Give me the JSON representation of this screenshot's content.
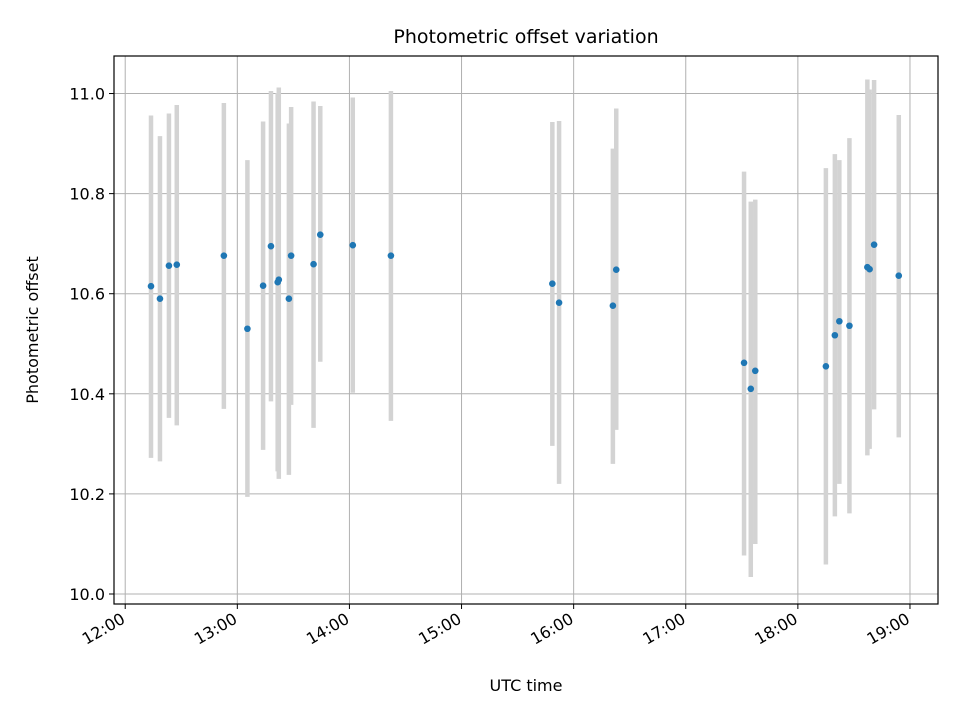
{
  "chart_data": {
    "type": "scatter",
    "title": "Photometric offset variation",
    "xlabel": "UTC time",
    "ylabel": "Photometric offset",
    "x_unit": "hours",
    "xlim": [
      11.9,
      19.25
    ],
    "ylim": [
      9.98,
      11.075
    ],
    "grid": true,
    "x_tick_values": [
      12,
      13,
      14,
      15,
      16,
      17,
      18,
      19
    ],
    "x_tick_labels": [
      "12:00",
      "13:00",
      "14:00",
      "15:00",
      "16:00",
      "17:00",
      "18:00",
      "19:00"
    ],
    "y_tick_values": [
      10.0,
      10.2,
      10.4,
      10.6,
      10.8,
      11.0
    ],
    "y_tick_labels": [
      "10.0",
      "10.2",
      "10.4",
      "10.6",
      "10.8",
      "11.0"
    ],
    "colors": {
      "points": "#1f77b4",
      "errorbars": "#d3d3d3",
      "grid": "#b0b0b0"
    },
    "points": [
      {
        "x": 12.23,
        "y": 10.615,
        "lo": 10.272,
        "hi": 10.956
      },
      {
        "x": 12.31,
        "y": 10.59,
        "lo": 10.265,
        "hi": 10.915
      },
      {
        "x": 12.39,
        "y": 10.656,
        "lo": 10.352,
        "hi": 10.96
      },
      {
        "x": 12.46,
        "y": 10.658,
        "lo": 10.337,
        "hi": 10.977
      },
      {
        "x": 12.88,
        "y": 10.676,
        "lo": 10.37,
        "hi": 10.981
      },
      {
        "x": 13.09,
        "y": 10.53,
        "lo": 10.194,
        "hi": 10.867
      },
      {
        "x": 13.23,
        "y": 10.616,
        "lo": 10.288,
        "hi": 10.944
      },
      {
        "x": 13.3,
        "y": 10.695,
        "lo": 10.385,
        "hi": 11.005
      },
      {
        "x": 13.36,
        "y": 10.623,
        "lo": 10.245,
        "hi": 11.001
      },
      {
        "x": 13.37,
        "y": 10.628,
        "lo": 10.23,
        "hi": 11.012
      },
      {
        "x": 13.46,
        "y": 10.59,
        "lo": 10.238,
        "hi": 10.94
      },
      {
        "x": 13.48,
        "y": 10.676,
        "lo": 10.378,
        "hi": 10.973
      },
      {
        "x": 13.68,
        "y": 10.659,
        "lo": 10.332,
        "hi": 10.984
      },
      {
        "x": 13.74,
        "y": 10.718,
        "lo": 10.464,
        "hi": 10.975
      },
      {
        "x": 14.03,
        "y": 10.697,
        "lo": 10.402,
        "hi": 10.992
      },
      {
        "x": 14.37,
        "y": 10.676,
        "lo": 10.346,
        "hi": 11.005
      },
      {
        "x": 15.81,
        "y": 10.62,
        "lo": 10.296,
        "hi": 10.943
      },
      {
        "x": 15.87,
        "y": 10.582,
        "lo": 10.22,
        "hi": 10.945
      },
      {
        "x": 16.35,
        "y": 10.576,
        "lo": 10.26,
        "hi": 10.89
      },
      {
        "x": 16.38,
        "y": 10.648,
        "lo": 10.328,
        "hi": 10.97
      },
      {
        "x": 17.52,
        "y": 10.462,
        "lo": 10.077,
        "hi": 10.844
      },
      {
        "x": 17.58,
        "y": 10.41,
        "lo": 10.034,
        "hi": 10.784
      },
      {
        "x": 17.62,
        "y": 10.446,
        "lo": 10.1,
        "hi": 10.788
      },
      {
        "x": 18.25,
        "y": 10.455,
        "lo": 10.059,
        "hi": 10.851
      },
      {
        "x": 18.33,
        "y": 10.517,
        "lo": 10.155,
        "hi": 10.879
      },
      {
        "x": 18.37,
        "y": 10.545,
        "lo": 10.22,
        "hi": 10.867
      },
      {
        "x": 18.46,
        "y": 10.536,
        "lo": 10.161,
        "hi": 10.911
      },
      {
        "x": 18.62,
        "y": 10.653,
        "lo": 10.277,
        "hi": 11.028
      },
      {
        "x": 18.64,
        "y": 10.649,
        "lo": 10.29,
        "hi": 11.008
      },
      {
        "x": 18.68,
        "y": 10.698,
        "lo": 10.369,
        "hi": 11.027
      },
      {
        "x": 18.9,
        "y": 10.636,
        "lo": 10.313,
        "hi": 10.957
      }
    ]
  }
}
